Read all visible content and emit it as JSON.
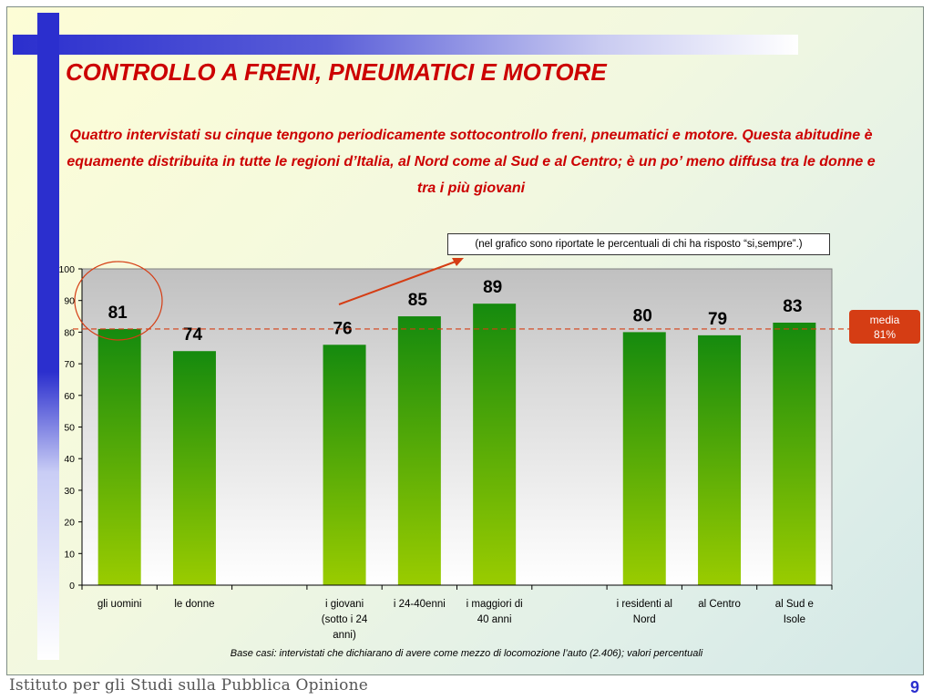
{
  "title": "CONTROLLO A FRENI, PNEUMATICI E MOTORE",
  "subtitle": "Quattro intervistati su cinque tengono periodicamente sottocontrollo freni, pneumatici e motore. Questa abitudine è equamente distribuita in tutte le regioni d’Italia, al Nord come al Sud e al Centro; è un po’ meno diffusa tra le donne e tra i più giovani",
  "note": "(nel grafico sono riportate le percentuali di chi ha risposto “si,sempre”.)",
  "media_badge": {
    "line1": "media",
    "line2": "81%"
  },
  "footnote": "Base casi: intervistati che dichiarano di avere come mezzo di locomozione l’auto (2.406); valori percentuali",
  "brand": "Istituto per gli Studi sulla Pubblica Opinione",
  "page_number": "9",
  "colors": {
    "title": "#cc0000",
    "bar_top": "#158a0e",
    "bar_bottom": "#9acc00",
    "average_line": "#d53d14",
    "accent_blue": "#2b2fce"
  },
  "chart_data": {
    "type": "bar",
    "categories": [
      [
        "gli uomini"
      ],
      [
        "le donne"
      ],
      [],
      [
        "i giovani",
        "(sotto i 24",
        "anni)"
      ],
      [
        "i 24-40enni"
      ],
      [
        "i maggiori di",
        "40 anni"
      ],
      [],
      [
        "i residenti al",
        "Nord"
      ],
      [
        "al Centro"
      ],
      [
        "al Sud e",
        "Isole"
      ]
    ],
    "values": [
      81,
      74,
      null,
      76,
      85,
      89,
      null,
      80,
      79,
      83
    ],
    "value_labels": [
      "81",
      "74",
      "",
      "76",
      "85",
      "89",
      "",
      "80",
      "79",
      "83"
    ],
    "ylim": [
      0,
      100
    ],
    "yticks": [
      0,
      10,
      20,
      30,
      40,
      50,
      60,
      70,
      80,
      90,
      100
    ],
    "average": 81,
    "grid": false,
    "highlighted_category": "gli uomini"
  }
}
